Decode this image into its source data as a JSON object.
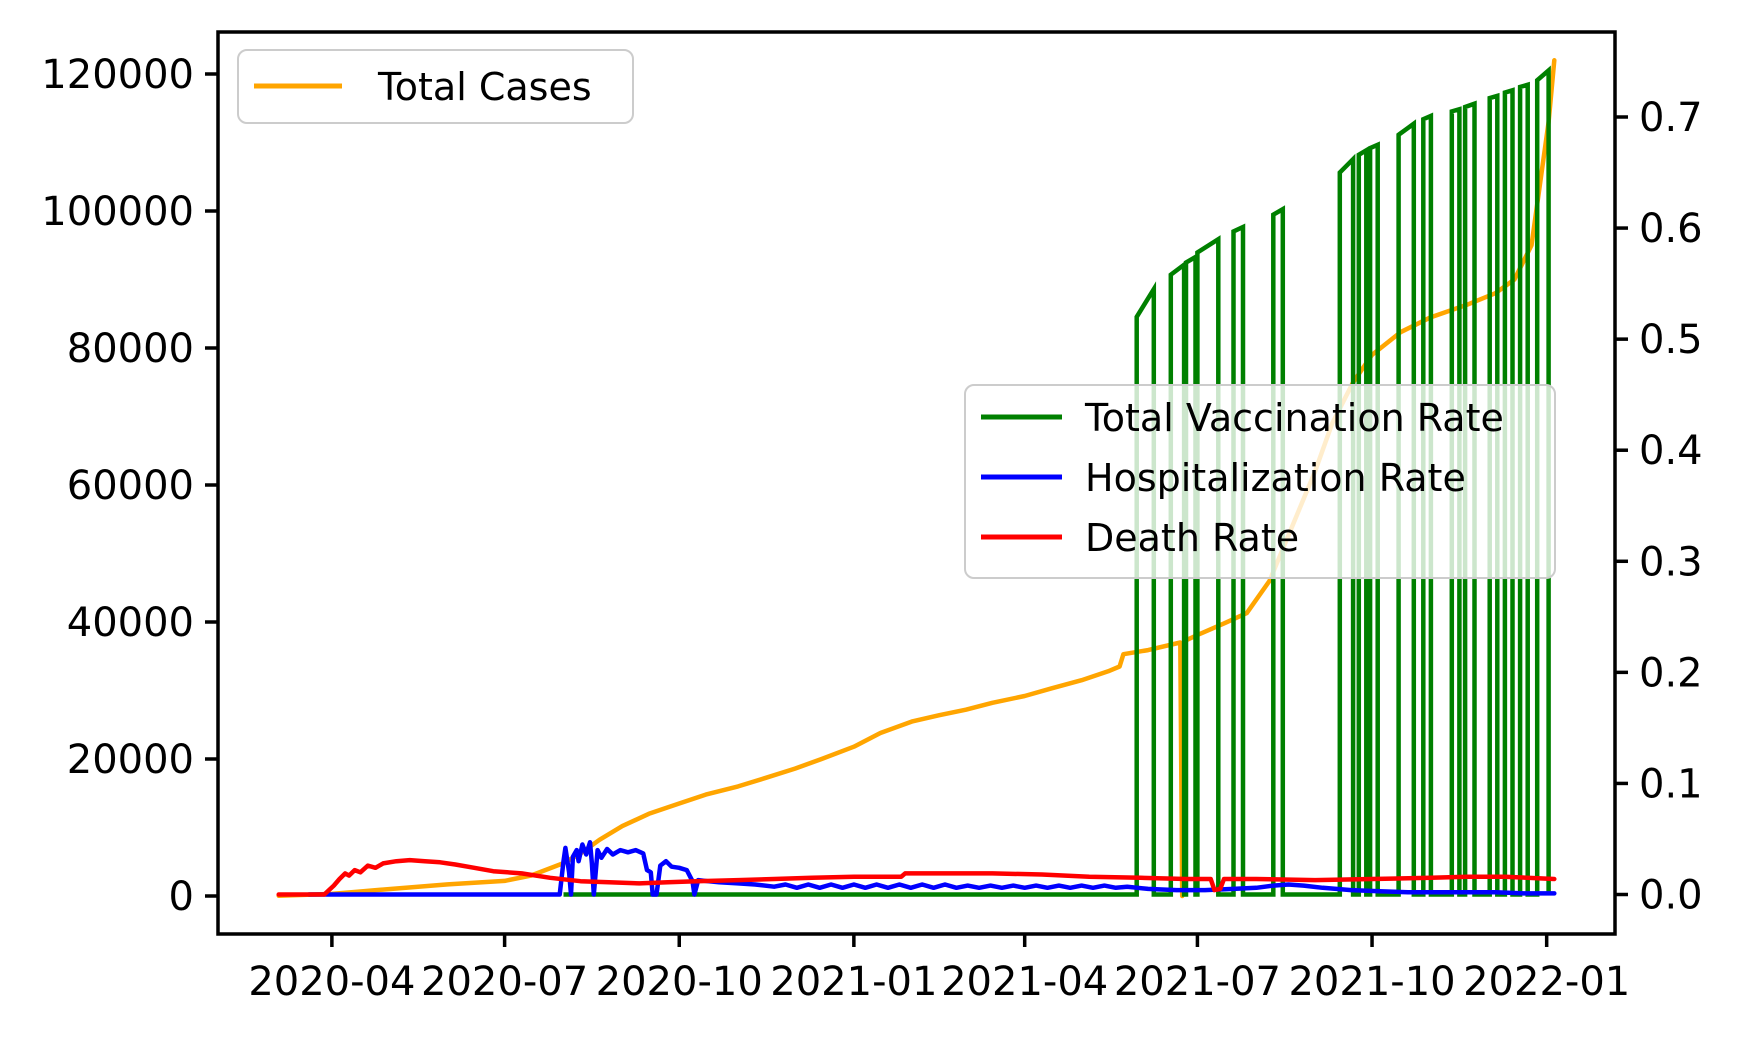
{
  "chart_data": {
    "type": "line",
    "title": "",
    "x_axis": {
      "domain": [
        "2020-02-01",
        "2022-02-06"
      ],
      "ticks": [
        {
          "date": "2020-04-01",
          "label": "2020-04"
        },
        {
          "date": "2020-07-01",
          "label": "2020-07"
        },
        {
          "date": "2020-10-01",
          "label": "2020-10"
        },
        {
          "date": "2021-01-01",
          "label": "2021-01"
        },
        {
          "date": "2021-04-01",
          "label": "2021-04"
        },
        {
          "date": "2021-07-01",
          "label": "2021-07"
        },
        {
          "date": "2021-10-01",
          "label": "2021-10"
        },
        {
          "date": "2022-01-01",
          "label": "2022-01"
        }
      ]
    },
    "left_axis": {
      "ticks": [
        0,
        20000,
        40000,
        60000,
        80000,
        100000,
        120000
      ],
      "range": [
        0,
        126000
      ]
    },
    "right_axis": {
      "ticks": [
        0.0,
        0.1,
        0.2,
        0.3,
        0.4,
        0.5,
        0.6,
        0.7
      ],
      "range": [
        0,
        0.755
      ]
    },
    "legend_cases": {
      "label": "Total Cases"
    },
    "legend_rates": {
      "items": [
        {
          "label": "Total Vaccination Rate",
          "color": "#008000"
        },
        {
          "label": "Hospitalization Rate",
          "color": "#0000ff"
        },
        {
          "label": "Death Rate",
          "color": "#ff0000"
        }
      ]
    },
    "series": {
      "total_cases": {
        "name": "Total Cases",
        "color": "#ffa500",
        "axis": "left",
        "points": [
          [
            "2020-03-04",
            50
          ],
          [
            "2020-04-01",
            300
          ],
          [
            "2020-05-01",
            1000
          ],
          [
            "2020-06-01",
            1700
          ],
          [
            "2020-07-01",
            2200
          ],
          [
            "2020-07-15",
            3000
          ],
          [
            "2020-08-01",
            4800
          ],
          [
            "2020-08-10",
            6200
          ],
          [
            "2020-08-20",
            8200
          ],
          [
            "2020-09-01",
            10200
          ],
          [
            "2020-09-15",
            12000
          ],
          [
            "2020-10-01",
            13500
          ],
          [
            "2020-10-15",
            14800
          ],
          [
            "2020-11-01",
            16000
          ],
          [
            "2020-11-15",
            17200
          ],
          [
            "2020-12-01",
            18600
          ],
          [
            "2020-12-15",
            20000
          ],
          [
            "2021-01-01",
            21800
          ],
          [
            "2021-01-15",
            23800
          ],
          [
            "2021-02-01",
            25500
          ],
          [
            "2021-02-15",
            26400
          ],
          [
            "2021-03-01",
            27200
          ],
          [
            "2021-03-15",
            28200
          ],
          [
            "2021-04-01",
            29200
          ],
          [
            "2021-04-15",
            30300
          ],
          [
            "2021-05-01",
            31500
          ],
          [
            "2021-05-15",
            32800
          ],
          [
            "2021-05-21",
            33500
          ],
          [
            "2021-05-23",
            35300
          ],
          [
            "2021-06-05",
            35900
          ],
          [
            "2021-06-22",
            37000
          ],
          [
            "2021-06-23",
            0
          ],
          [
            "2021-06-24",
            37200
          ],
          [
            "2021-07-01",
            38100
          ],
          [
            "2021-07-15",
            39800
          ],
          [
            "2021-07-27",
            41300
          ],
          [
            "2021-08-08",
            46000
          ],
          [
            "2021-08-20",
            54000
          ],
          [
            "2021-09-01",
            62000
          ],
          [
            "2021-09-10",
            69000
          ],
          [
            "2021-09-21",
            75000
          ],
          [
            "2021-10-01",
            79000
          ],
          [
            "2021-10-16",
            82300
          ],
          [
            "2021-11-01",
            84500
          ],
          [
            "2021-11-20",
            86300
          ],
          [
            "2021-12-05",
            88000
          ],
          [
            "2021-12-15",
            90000
          ],
          [
            "2021-12-24",
            95000
          ],
          [
            "2021-12-28",
            103000
          ],
          [
            "2022-01-02",
            113000
          ],
          [
            "2022-01-05",
            122000
          ]
        ]
      },
      "vaccination_rate": {
        "name": "Total Vaccination Rate",
        "color": "#008000",
        "axis": "right",
        "baseline_start": "2020-08-01",
        "baseline_end": "2022-01-02",
        "segments": [
          [
            "2021-05-30",
            "2021-06-08",
            0.52,
            0.545
          ],
          [
            "2021-06-17",
            "2021-06-24",
            0.558,
            0.567
          ],
          [
            "2021-06-25",
            "2021-06-30",
            0.569,
            0.574
          ],
          [
            "2021-07-01",
            "2021-07-12",
            0.578,
            0.59
          ],
          [
            "2021-07-20",
            "2021-07-25",
            0.597,
            0.601
          ],
          [
            "2021-08-10",
            "2021-08-15",
            0.612,
            0.617
          ],
          [
            "2021-09-14",
            "2021-09-21",
            0.65,
            0.662
          ],
          [
            "2021-09-24",
            "2021-09-28",
            0.666,
            0.67
          ],
          [
            "2021-09-30",
            "2021-10-04",
            0.672,
            0.675
          ],
          [
            "2021-10-15",
            "2021-10-23",
            0.684,
            0.694
          ],
          [
            "2021-10-28",
            "2021-11-01",
            0.698,
            0.701
          ],
          [
            "2021-11-12",
            "2021-11-16",
            0.705,
            0.707
          ],
          [
            "2021-11-19",
            "2021-11-24",
            0.709,
            0.712
          ],
          [
            "2021-12-02",
            "2021-12-06",
            0.717,
            0.719
          ],
          [
            "2021-12-10",
            "2021-12-14",
            0.722,
            0.724
          ],
          [
            "2021-12-18",
            "2021-12-22",
            0.727,
            0.729
          ],
          [
            "2021-12-27",
            "2022-01-02",
            0.733,
            0.742
          ]
        ]
      },
      "hospitalization_rate": {
        "name": "Hospitalization Rate",
        "color": "#0000ff",
        "axis": "right",
        "points": [
          [
            "2020-03-20",
            0
          ],
          [
            "2020-07-30",
            0
          ],
          [
            "2020-08-01",
            0.03
          ],
          [
            "2020-08-02",
            0.042
          ],
          [
            "2020-08-04",
            0.02
          ],
          [
            "2020-08-05",
            0
          ],
          [
            "2020-08-06",
            0.034
          ],
          [
            "2020-08-08",
            0.04
          ],
          [
            "2020-08-09",
            0.03
          ],
          [
            "2020-08-11",
            0.045
          ],
          [
            "2020-08-13",
            0.036
          ],
          [
            "2020-08-15",
            0.047
          ],
          [
            "2020-08-16",
            0.028
          ],
          [
            "2020-08-17",
            0
          ],
          [
            "2020-08-19",
            0.04
          ],
          [
            "2020-08-21",
            0.033
          ],
          [
            "2020-08-24",
            0.041
          ],
          [
            "2020-08-27",
            0.036
          ],
          [
            "2020-08-31",
            0.04
          ],
          [
            "2020-09-04",
            0.038
          ],
          [
            "2020-09-08",
            0.04
          ],
          [
            "2020-09-12",
            0.037
          ],
          [
            "2020-09-14",
            0.022
          ],
          [
            "2020-09-16",
            0.02
          ],
          [
            "2020-09-17",
            0
          ],
          [
            "2020-09-19",
            0
          ],
          [
            "2020-09-21",
            0.026
          ],
          [
            "2020-09-24",
            0.03
          ],
          [
            "2020-09-27",
            0.025
          ],
          [
            "2020-10-01",
            0.024
          ],
          [
            "2020-10-05",
            0.022
          ],
          [
            "2020-10-08",
            0.012
          ],
          [
            "2020-10-09",
            0
          ],
          [
            "2020-10-11",
            0.013
          ],
          [
            "2020-10-16",
            0.012
          ],
          [
            "2020-10-22",
            0.011
          ],
          [
            "2020-11-01",
            0.01
          ],
          [
            "2020-11-10",
            0.009
          ],
          [
            "2020-11-20",
            0.007
          ],
          [
            "2020-11-26",
            0.009
          ],
          [
            "2020-12-02",
            0.006
          ],
          [
            "2020-12-08",
            0.009
          ],
          [
            "2020-12-14",
            0.006
          ],
          [
            "2020-12-20",
            0.009
          ],
          [
            "2020-12-26",
            0.006
          ],
          [
            "2021-01-01",
            0.009
          ],
          [
            "2021-01-07",
            0.006
          ],
          [
            "2021-01-13",
            0.009
          ],
          [
            "2021-01-19",
            0.006
          ],
          [
            "2021-01-25",
            0.009
          ],
          [
            "2021-01-31",
            0.006
          ],
          [
            "2021-02-06",
            0.009
          ],
          [
            "2021-02-12",
            0.006
          ],
          [
            "2021-02-18",
            0.009
          ],
          [
            "2021-02-24",
            0.006
          ],
          [
            "2021-03-02",
            0.008
          ],
          [
            "2021-03-08",
            0.006
          ],
          [
            "2021-03-14",
            0.008
          ],
          [
            "2021-03-20",
            0.006
          ],
          [
            "2021-03-26",
            0.008
          ],
          [
            "2021-04-01",
            0.006
          ],
          [
            "2021-04-07",
            0.008
          ],
          [
            "2021-04-13",
            0.006
          ],
          [
            "2021-04-19",
            0.008
          ],
          [
            "2021-04-25",
            0.006
          ],
          [
            "2021-05-01",
            0.008
          ],
          [
            "2021-05-07",
            0.006
          ],
          [
            "2021-05-13",
            0.008
          ],
          [
            "2021-05-19",
            0.006
          ],
          [
            "2021-05-25",
            0.007
          ],
          [
            "2021-06-05",
            0.005
          ],
          [
            "2021-06-20",
            0.004
          ],
          [
            "2021-07-05",
            0.004
          ],
          [
            "2021-07-20",
            0.005
          ],
          [
            "2021-08-01",
            0.006
          ],
          [
            "2021-08-10",
            0.008
          ],
          [
            "2021-08-18",
            0.009
          ],
          [
            "2021-08-26",
            0.008
          ],
          [
            "2021-09-05",
            0.006
          ],
          [
            "2021-09-20",
            0.004
          ],
          [
            "2021-10-05",
            0.003
          ],
          [
            "2021-10-20",
            0.002
          ],
          [
            "2021-11-05",
            0.002
          ],
          [
            "2021-11-20",
            0.002
          ],
          [
            "2021-12-05",
            0.002
          ],
          [
            "2021-12-20",
            0.001
          ],
          [
            "2022-01-05",
            0.001
          ]
        ]
      },
      "death_rate": {
        "name": "Death Rate",
        "color": "#ff0000",
        "axis": "right",
        "points": [
          [
            "2020-03-04",
            0
          ],
          [
            "2020-03-28",
            0
          ],
          [
            "2020-04-02",
            0.008
          ],
          [
            "2020-04-05",
            0.014
          ],
          [
            "2020-04-08",
            0.019
          ],
          [
            "2020-04-10",
            0.017
          ],
          [
            "2020-04-13",
            0.022
          ],
          [
            "2020-04-16",
            0.02
          ],
          [
            "2020-04-20",
            0.026
          ],
          [
            "2020-04-24",
            0.024
          ],
          [
            "2020-04-28",
            0.028
          ],
          [
            "2020-05-05",
            0.03
          ],
          [
            "2020-05-12",
            0.031
          ],
          [
            "2020-05-20",
            0.03
          ],
          [
            "2020-05-28",
            0.029
          ],
          [
            "2020-06-05",
            0.027
          ],
          [
            "2020-06-15",
            0.024
          ],
          [
            "2020-06-25",
            0.021
          ],
          [
            "2020-07-10",
            0.019
          ],
          [
            "2020-07-25",
            0.015
          ],
          [
            "2020-08-10",
            0.012
          ],
          [
            "2020-08-25",
            0.011
          ],
          [
            "2020-09-10",
            0.01
          ],
          [
            "2020-09-25",
            0.011
          ],
          [
            "2020-10-10",
            0.012
          ],
          [
            "2020-11-01",
            0.013
          ],
          [
            "2020-11-20",
            0.014
          ],
          [
            "2020-12-10",
            0.015
          ],
          [
            "2021-01-01",
            0.016
          ],
          [
            "2021-01-26",
            0.016
          ],
          [
            "2021-01-28",
            0.019
          ],
          [
            "2021-02-20",
            0.019
          ],
          [
            "2021-03-15",
            0.019
          ],
          [
            "2021-04-10",
            0.018
          ],
          [
            "2021-05-05",
            0.016
          ],
          [
            "2021-06-01",
            0.015
          ],
          [
            "2021-06-25",
            0.014
          ],
          [
            "2021-07-08",
            0.014
          ],
          [
            "2021-07-10",
            0.004
          ],
          [
            "2021-07-13",
            0.005
          ],
          [
            "2021-07-15",
            0.014
          ],
          [
            "2021-08-01",
            0.014
          ],
          [
            "2021-09-01",
            0.013
          ],
          [
            "2021-10-01",
            0.014
          ],
          [
            "2021-11-01",
            0.015
          ],
          [
            "2021-11-20",
            0.016
          ],
          [
            "2021-12-10",
            0.016
          ],
          [
            "2022-01-05",
            0.014
          ]
        ]
      }
    }
  }
}
